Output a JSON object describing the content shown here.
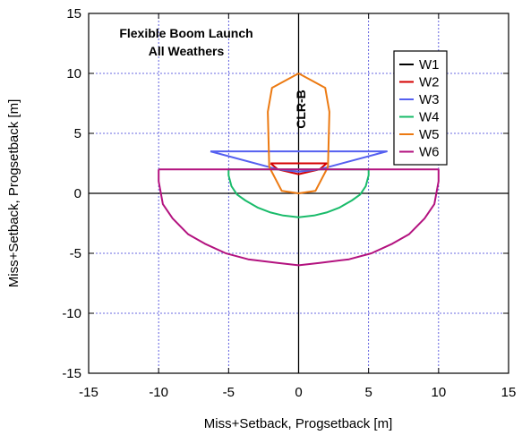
{
  "chart_data": {
    "type": "line",
    "title_lines": [
      "Flexible Boom Launch",
      "All Weathers"
    ],
    "xlabel": "Miss+Setback, Progsetback [m]",
    "ylabel": "Miss+Setback, Progsetback [m]",
    "xlim": [
      -15,
      15
    ],
    "ylim": [
      -15,
      15
    ],
    "xticks": [
      -15,
      -10,
      -5,
      0,
      5,
      10,
      15
    ],
    "yticks": [
      -15,
      -10,
      -5,
      0,
      5,
      10,
      15
    ],
    "grid": true,
    "legend_position": "right",
    "annotation": "CLR-B",
    "series": [
      {
        "name": "W1",
        "color": "#000000",
        "points": [
          [
            0,
            1.5
          ],
          [
            0,
            1.5
          ]
        ]
      },
      {
        "name": "W2",
        "color": "#d40000",
        "points": [
          [
            -2,
            2.5
          ],
          [
            2,
            2.5
          ],
          [
            1.5,
            2.0
          ],
          [
            0,
            1.6
          ],
          [
            -1.5,
            2.0
          ],
          [
            -2,
            2.5
          ]
        ]
      },
      {
        "name": "W3",
        "color": "#5560f0",
        "points": [
          [
            -6.3,
            3.5
          ],
          [
            6.3,
            3.5
          ],
          [
            1.5,
            2.0
          ],
          [
            0,
            1.8
          ],
          [
            -1.5,
            2.0
          ],
          [
            -6.3,
            3.5
          ]
        ]
      },
      {
        "name": "W4",
        "color": "#19bb6a",
        "points": [
          [
            -5,
            2
          ],
          [
            5,
            2
          ],
          [
            5,
            1.5
          ],
          [
            4.8,
            0.6
          ],
          [
            4.4,
            -0.1
          ],
          [
            3.8,
            -0.6
          ],
          [
            2.9,
            -1.2
          ],
          [
            2,
            -1.6
          ],
          [
            1.1,
            -1.85
          ],
          [
            0,
            -2
          ],
          [
            -1.1,
            -1.85
          ],
          [
            -2,
            -1.6
          ],
          [
            -2.9,
            -1.2
          ],
          [
            -3.8,
            -0.6
          ],
          [
            -4.4,
            -0.1
          ],
          [
            -4.8,
            0.6
          ],
          [
            -5,
            1.5
          ],
          [
            -5,
            2
          ]
        ]
      },
      {
        "name": "W5",
        "color": "#ec7a12",
        "points": [
          [
            0,
            10
          ],
          [
            1.9,
            8.8
          ],
          [
            2.2,
            6.8
          ],
          [
            2.1,
            2.2
          ],
          [
            1.2,
            0.2
          ],
          [
            0,
            0
          ],
          [
            -1.2,
            0.2
          ],
          [
            -2.1,
            2.2
          ],
          [
            -2.2,
            6.8
          ],
          [
            -1.9,
            8.8
          ],
          [
            0,
            10
          ]
        ]
      },
      {
        "name": "W6",
        "color": "#b3127f",
        "points": [
          [
            -10,
            2
          ],
          [
            10,
            2
          ],
          [
            10,
            1
          ],
          [
            9.7,
            -0.9
          ],
          [
            9,
            -2.1
          ],
          [
            7.9,
            -3.4
          ],
          [
            6.7,
            -4.2
          ],
          [
            5.2,
            -5
          ],
          [
            3.6,
            -5.5
          ],
          [
            1.5,
            -5.8
          ],
          [
            0,
            -6
          ],
          [
            -1.5,
            -5.8
          ],
          [
            -3.6,
            -5.5
          ],
          [
            -5.2,
            -5
          ],
          [
            -6.7,
            -4.2
          ],
          [
            -7.9,
            -3.4
          ],
          [
            -9,
            -2.1
          ],
          [
            -9.7,
            -0.9
          ],
          [
            -10,
            1
          ],
          [
            -10,
            2
          ]
        ]
      }
    ]
  }
}
